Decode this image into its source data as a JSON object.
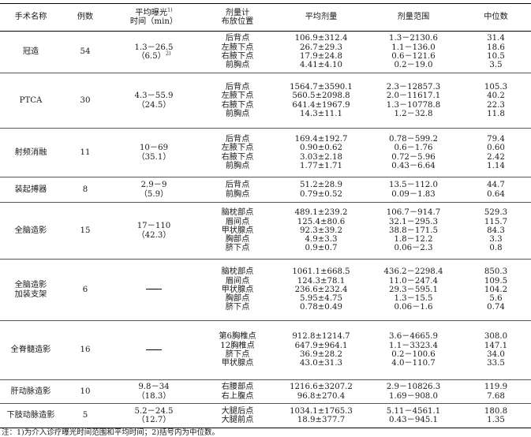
{
  "headers": {
    "procedure": "手术名称",
    "cases": "例数",
    "fluoro_time_line1": "平均曝光",
    "fluoro_time_sup": "1)",
    "fluoro_time_line2": "时间（min）",
    "position_line1": "剂量计",
    "position_line2": "布放位置",
    "mean_dose": "平均剂量",
    "dose_range": "剂量范围",
    "median": "中位数"
  },
  "rows": [
    {
      "name": [
        "冠造"
      ],
      "cases": "54",
      "time": [
        "1.3－26.5",
        "（6.5）"
      ],
      "time_sup": "2)",
      "positions": [
        "后背点",
        "左腋下点",
        "右腋下点",
        "前胸点"
      ],
      "means": [
        "106.9±312.4",
        "26.7±29.3",
        "17.9±24.8",
        "4.41±4.10"
      ],
      "ranges": [
        "1.3－2130.6",
        "1.1－136.0",
        "0.6－121.6",
        "0.2－19.0"
      ],
      "medians": [
        "31.4",
        "18.6",
        "10.5",
        "3.5"
      ]
    },
    {
      "name": [
        "PTCA"
      ],
      "cases": "30",
      "time": [
        "4.3－55.9",
        "（24.5）"
      ],
      "positions": [
        "后背点",
        "左腋下点",
        "右腋下点",
        "前胸点"
      ],
      "means": [
        "1564.7±3590.1",
        "560.5±2098.8",
        "641.4±1967.9",
        "14.3±11.1"
      ],
      "ranges": [
        "2.3－12857.3",
        "2.0－11617.1",
        "1.3－10778.8",
        "1.2－32.8"
      ],
      "medians": [
        "105.3",
        "40.2",
        "22.3",
        "11.8"
      ]
    },
    {
      "name": [
        "射频消融"
      ],
      "cases": "11",
      "time": [
        "10－69",
        "（35.1）"
      ],
      "positions": [
        "后背点",
        "左腋下点",
        "右腋下点",
        "前胸点"
      ],
      "means": [
        "169.4±192.7",
        "0.90±0.62",
        "3.03±2.18",
        "1.77±1.71"
      ],
      "ranges": [
        "0.78－599.2",
        "0.6－1.76",
        "0.72－5.96",
        "0.43－6.64"
      ],
      "medians": [
        "79.4",
        "0.60",
        "2.42",
        "1.14"
      ]
    },
    {
      "name": [
        "装起搏器"
      ],
      "cases": "8",
      "time": [
        "2.9－9",
        "（5.9）"
      ],
      "positions": [
        "后背点",
        "前胸点"
      ],
      "means": [
        "51.2±28.9",
        "0.79±0.52"
      ],
      "ranges": [
        "13.5－112.0",
        "0.09－1.83"
      ],
      "medians": [
        "44.7",
        "0.64"
      ]
    },
    {
      "name": [
        "全脑造影"
      ],
      "cases": "15",
      "time": [
        "17－110",
        "（42.3）"
      ],
      "positions": [
        "脑枕部点",
        "眉间点",
        "甲状腺点",
        "胸部点",
        "脐下点"
      ],
      "means": [
        "489.1±239.2",
        "125.4±80.6",
        "92.3±39.2",
        "4.9±3.3",
        "0.9±0.7"
      ],
      "ranges": [
        "106.7－914.7",
        "32.1－295.3",
        "38.8－171.5",
        "1.8－12.2",
        "0.06－2.3"
      ],
      "medians": [
        "529.3",
        "115.7",
        "84.3",
        "3.3",
        "0.8"
      ]
    },
    {
      "name": [
        "全脑造影",
        "加装支架"
      ],
      "cases": "6",
      "time": [],
      "positions": [
        "脑枕部点",
        "眉间点",
        "甲状腺点",
        "胸部点",
        "脐下点"
      ],
      "means": [
        "1061.1±668.5",
        "124.3±78.1",
        "236.6±232.4",
        "5.95±4.75",
        "0.78±0.49"
      ],
      "ranges": [
        "436.2－2298.4",
        "11.0－247.4",
        "29.3－595.1",
        "1.3－15.5",
        "0.06－1.6"
      ],
      "medians": [
        "850.3",
        "109.5",
        "104.2",
        "5.6",
        "0.74"
      ]
    },
    {
      "name": [
        "全脊髓造影"
      ],
      "cases": "16",
      "time": [],
      "positions": [
        "第6胸椎点",
        "12胸椎点",
        "脐下点",
        "甲状腺点"
      ],
      "means": [
        "912.8±1214.7",
        "647.9±964.1",
        "36.9±28.2",
        "43.0±31.3"
      ],
      "ranges": [
        "3.6－4665.9",
        "1.1－3323.4",
        "0.2－100.6",
        "4.0－110.7"
      ],
      "medians": [
        "308.0",
        "147.1",
        "34.0",
        "33.5"
      ]
    },
    {
      "name": [
        "肝动脉造影"
      ],
      "cases": "10",
      "time": [
        "9.8－34",
        "（18.3）"
      ],
      "positions": [
        "右腰部点",
        "右上腹点"
      ],
      "means": [
        "1216.6±3207.2",
        "96.8±270.4"
      ],
      "ranges": [
        "2.9－10826.3",
        "1.69－908.0"
      ],
      "medians": [
        "119.9",
        "7.68"
      ]
    },
    {
      "name": [
        "下肢动脉造影"
      ],
      "cases": "5",
      "time": [
        "5.2－24.5",
        "（12.7）"
      ],
      "positions": [
        "大腿后点",
        "大腿前点"
      ],
      "means": [
        "1034.1±1765.3",
        "18.9±377.7"
      ],
      "ranges": [
        "5.11－4561.1",
        "0.43－945.1"
      ],
      "medians": [
        "180.8",
        "1.35"
      ]
    }
  ],
  "footnote": "注：1)为介入诊疗曝光时间范围和平均时间；2)括号内为中位数。"
}
